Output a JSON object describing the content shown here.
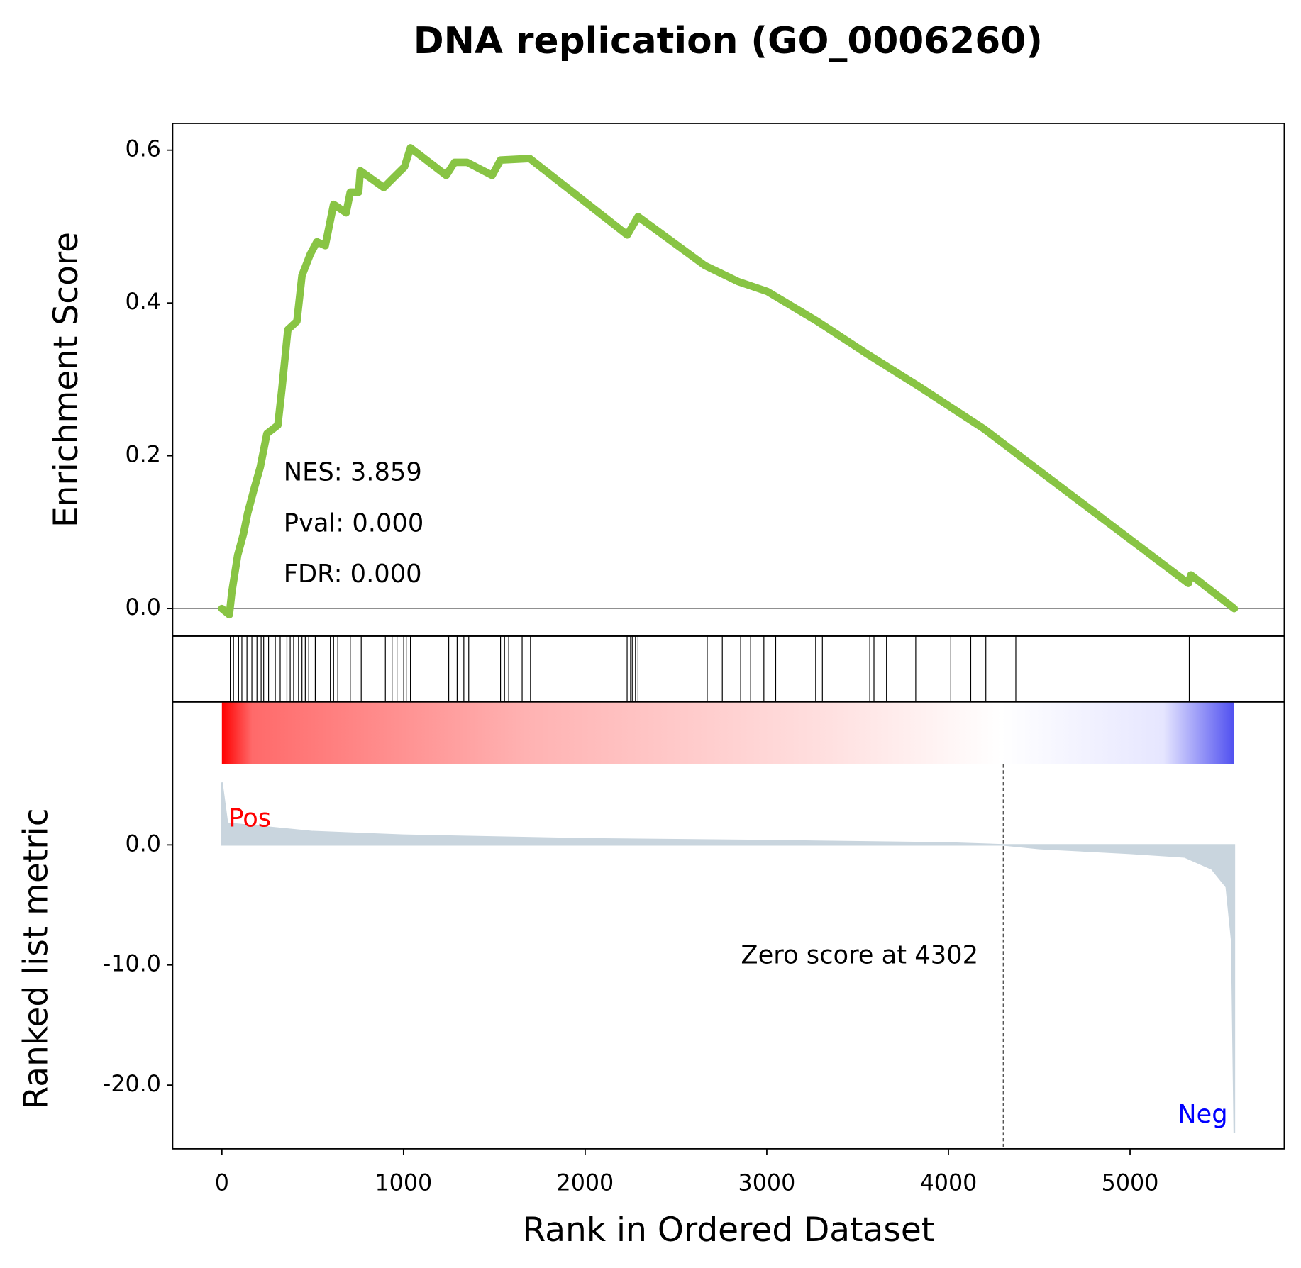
{
  "chart_data": [
    {
      "type": "line",
      "title": "DNA replication (GO_0006260)",
      "ylabel": "Enrichment Score",
      "color": "#88c444",
      "x": [
        0,
        41,
        55,
        87,
        119,
        142,
        179,
        211,
        248,
        308,
        331,
        363,
        413,
        441,
        487,
        523,
        569,
        615,
        684,
        707,
        753,
        762,
        891,
        937,
        1005,
        1038,
        1235,
        1281,
        1350,
        1488,
        1534,
        1695,
        2232,
        2291,
        2659,
        2842,
        3003,
        3278,
        3554,
        3829,
        4197,
        4380,
        5321,
        5335,
        5574
      ],
      "values": [
        0,
        -0.008,
        0.022,
        0.07,
        0.098,
        0.125,
        0.158,
        0.185,
        0.229,
        0.24,
        0.289,
        0.365,
        0.376,
        0.436,
        0.464,
        0.48,
        0.475,
        0.529,
        0.518,
        0.545,
        0.545,
        0.573,
        0.551,
        0.562,
        0.578,
        0.603,
        0.567,
        0.584,
        0.584,
        0.567,
        0.587,
        0.589,
        0.489,
        0.513,
        0.449,
        0.428,
        0.415,
        0.376,
        0.333,
        0.292,
        0.235,
        0.202,
        0.033,
        0.044,
        0
      ],
      "xlim": [
        -271,
        5849
      ],
      "ylim": [
        -0.036,
        0.635
      ],
      "yticks": [
        {
          "value": 0,
          "label": "0.0"
        },
        {
          "value": 0.2,
          "label": "0.2"
        },
        {
          "value": 0.4,
          "label": "0.4"
        },
        {
          "value": 0.6,
          "label": "0.6"
        }
      ],
      "annotations": [
        "NES: 3.859",
        "Pval: 0.000",
        "FDR: 0.000"
      ]
    },
    {
      "type": "rug",
      "xlim": [
        -271,
        5849
      ],
      "values": [
        46,
        64,
        92,
        110,
        138,
        165,
        193,
        216,
        230,
        257,
        294,
        321,
        358,
        376,
        395,
        422,
        441,
        459,
        478,
        514,
        597,
        615,
        638,
        707,
        767,
        900,
        937,
        964,
        1001,
        1015,
        1038,
        1249,
        1295,
        1332,
        1359,
        1534,
        1556,
        1579,
        1653,
        1699,
        2231,
        2250,
        2259,
        2277,
        2291,
        2672,
        2755,
        2856,
        2911,
        2984,
        3049,
        3269,
        3306,
        3567,
        3590,
        3659,
        3820,
        4013,
        4123,
        4206,
        4371,
        5326
      ]
    },
    {
      "type": "area",
      "ylabel": "Ranked list metric",
      "xlabel": "Rank in Ordered Dataset",
      "color": "#c9d5de",
      "x": [
        0,
        30,
        500,
        1000,
        2000,
        3000,
        4000,
        4302,
        4500,
        5000,
        5300,
        5450,
        5530,
        5560,
        5574
      ],
      "values": [
        5.2,
        1.8,
        1.1,
        0.8,
        0.5,
        0.35,
        0.15,
        0,
        -0.3,
        -0.7,
        -1.0,
        -2.0,
        -3.5,
        -8,
        -24
      ],
      "xlim": [
        -271,
        5849
      ],
      "ylim": [
        -25.3,
        11.9
      ],
      "xticks": [
        0,
        1000,
        2000,
        3000,
        4000,
        5000
      ],
      "yticks": [
        {
          "value": 0,
          "label": "0.0"
        },
        {
          "value": -10,
          "label": "-10.0"
        },
        {
          "value": -20,
          "label": "-20.0"
        }
      ],
      "pos_label": "Pos",
      "neg_label": "Neg",
      "zero_score": 4302,
      "zero_score_label": "Zero score at 4302"
    }
  ]
}
